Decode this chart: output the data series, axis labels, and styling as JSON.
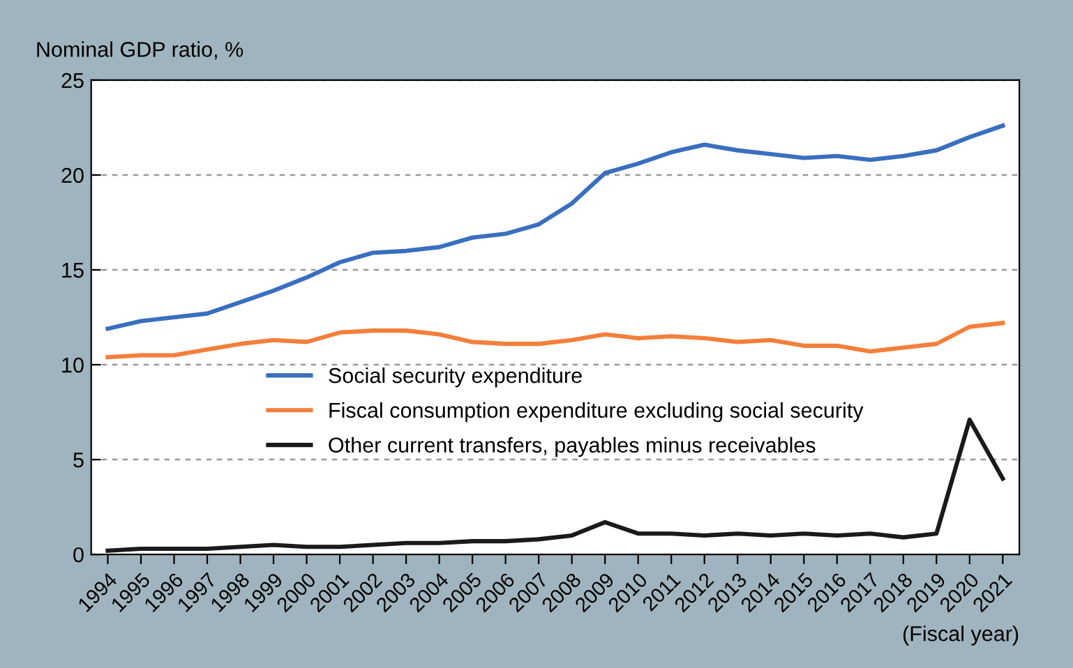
{
  "chart_data": {
    "type": "line",
    "ylabel": "Nominal GDP ratio, %",
    "xlabel": "(Fiscal year)",
    "categories": [
      "1994",
      "1995",
      "1996",
      "1997",
      "1998",
      "1999",
      "2000",
      "2001",
      "2002",
      "2003",
      "2004",
      "2005",
      "2006",
      "2007",
      "2008",
      "2009",
      "2010",
      "2011",
      "2012",
      "2013",
      "2014",
      "2015",
      "2016",
      "2017",
      "2018",
      "2019",
      "2020",
      "2021"
    ],
    "series": [
      {
        "name": "Social security expenditure",
        "color": "#3a6fbf",
        "values": [
          11.9,
          12.3,
          12.5,
          12.7,
          13.3,
          13.9,
          14.6,
          15.4,
          15.9,
          16.0,
          16.2,
          16.7,
          16.9,
          17.4,
          18.5,
          20.1,
          20.6,
          21.2,
          21.6,
          21.3,
          21.1,
          20.9,
          21.0,
          20.8,
          21.0,
          21.3,
          22.0,
          22.6
        ]
      },
      {
        "name": "Fiscal consumption expenditure excluding social security",
        "color": "#f47f3b",
        "values": [
          10.4,
          10.5,
          10.5,
          10.8,
          11.1,
          11.3,
          11.2,
          11.7,
          11.8,
          11.8,
          11.6,
          11.2,
          11.1,
          11.1,
          11.3,
          11.6,
          11.4,
          11.5,
          11.4,
          11.2,
          11.3,
          11.0,
          11.0,
          10.7,
          10.9,
          11.1,
          12.0,
          12.2
        ]
      },
      {
        "name": "Other current transfers, payables minus receivables",
        "color": "#1a1a1a",
        "values": [
          0.2,
          0.3,
          0.3,
          0.3,
          0.4,
          0.5,
          0.4,
          0.4,
          0.5,
          0.6,
          0.6,
          0.7,
          0.7,
          0.8,
          1.0,
          1.7,
          1.1,
          1.1,
          1.0,
          1.1,
          1.0,
          1.1,
          1.0,
          1.1,
          0.9,
          1.1,
          7.1,
          4.0
        ]
      }
    ],
    "ylim": [
      0,
      25
    ],
    "yticks": [
      0,
      5,
      10,
      15,
      20,
      25
    ],
    "grid": "y",
    "legend": "center left",
    "marker": "none",
    "line_style": "solid"
  }
}
